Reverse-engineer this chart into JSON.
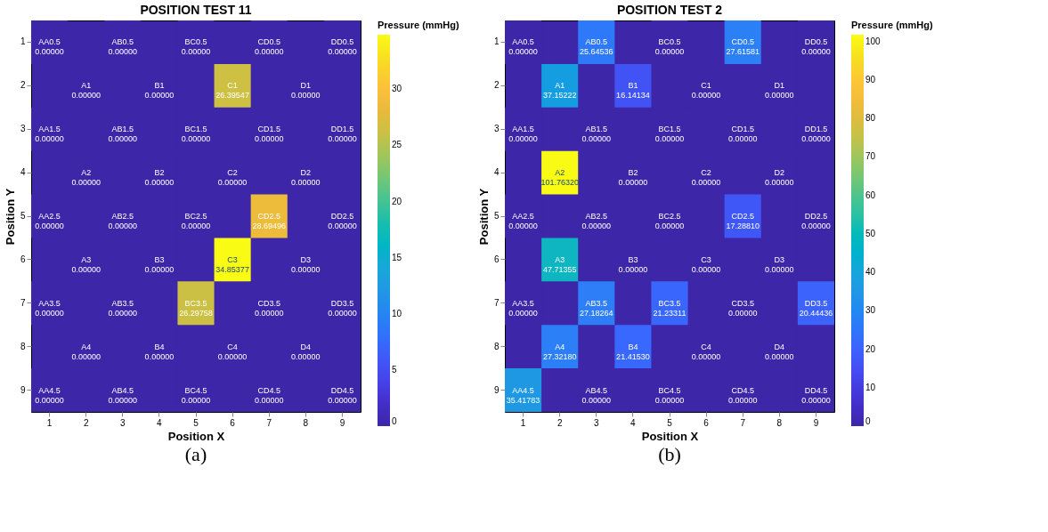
{
  "chart_data": [
    {
      "type": "heatmap",
      "title": "POSITION TEST 11",
      "xlabel": "Position X",
      "ylabel": "Position Y",
      "clabel": "Pressure (mmHg)",
      "annotations": [
        "(a)"
      ],
      "categories": [
        "1",
        "2",
        "3",
        "4",
        "5",
        "6",
        "7",
        "8",
        "9"
      ],
      "y_categories": [
        "1",
        "2",
        "3",
        "4",
        "5",
        "6",
        "7",
        "8",
        "9"
      ],
      "clim": [
        0,
        34.85377
      ],
      "cticks": [
        0,
        5,
        10,
        15,
        20,
        25,
        30
      ],
      "cells": [
        [
          0,
          null,
          0,
          null,
          0,
          null,
          0,
          null,
          0
        ],
        [
          null,
          0,
          null,
          0,
          null,
          26.39547,
          null,
          0,
          null
        ],
        [
          0,
          null,
          0,
          null,
          0,
          null,
          0,
          null,
          0
        ],
        [
          null,
          0,
          null,
          0,
          null,
          0,
          null,
          0,
          null
        ],
        [
          0,
          null,
          0,
          null,
          0,
          null,
          28.69496,
          null,
          0
        ],
        [
          null,
          0,
          null,
          0,
          null,
          34.85377,
          null,
          0,
          null
        ],
        [
          0,
          null,
          0,
          null,
          26.29758,
          null,
          0,
          null,
          0
        ],
        [
          null,
          0,
          null,
          0,
          null,
          0,
          null,
          0,
          null
        ],
        [
          0,
          null,
          0,
          null,
          0,
          null,
          0,
          null,
          0
        ]
      ],
      "cell_labels": [
        [
          "AA0.5\n0.00000",
          null,
          "AB0.5\n0.00000",
          null,
          "BC0.5\n0.00000",
          null,
          "CD0.5\n0.00000",
          null,
          "DD0.5\n0.00000"
        ],
        [
          null,
          "A1\n0.00000",
          null,
          "B1\n0.00000",
          null,
          "C1\n26.39547",
          null,
          "D1\n0.00000",
          null
        ],
        [
          "AA1.5\n0.00000",
          null,
          "AB1.5\n0.00000",
          null,
          "BC1.5\n0.00000",
          null,
          "CD1.5\n0.00000",
          null,
          "DD1.5\n0.00000"
        ],
        [
          null,
          "A2\n0.00000",
          null,
          "B2\n0.00000",
          null,
          "C2\n0.00000",
          null,
          "D2\n0.00000",
          null
        ],
        [
          "AA2.5\n0.00000",
          null,
          "AB2.5\n0.00000",
          null,
          "BC2.5\n0.00000",
          null,
          "CD2.5\n28.69496",
          null,
          "DD2.5\n0.00000"
        ],
        [
          null,
          "A3\n0.00000",
          null,
          "B3\n0.00000",
          null,
          "C3\n34.85377",
          null,
          "D3\n0.00000",
          null
        ],
        [
          "AA3.5\n0.00000",
          null,
          "AB3.5\n0.00000",
          null,
          "BC3.5\n26.29758",
          null,
          "CD3.5\n0.00000",
          null,
          "DD3.5\n0.00000"
        ],
        [
          null,
          "A4\n0.00000",
          null,
          "B4\n0.00000",
          null,
          "C4\n0.00000",
          null,
          "D4\n0.00000",
          null
        ],
        [
          "AA4.5\n0.00000",
          null,
          "AB4.5\n0.00000",
          null,
          "BC4.5\n0.00000",
          null,
          "CD4.5\n0.00000",
          null,
          "DD4.5\n0.00000"
        ]
      ]
    },
    {
      "type": "heatmap",
      "title": "POSITION TEST 2",
      "xlabel": "Position X",
      "ylabel": "Position Y",
      "clabel": "Pressure (mmHg)",
      "annotations": [
        "(b)"
      ],
      "categories": [
        "1",
        "2",
        "3",
        "4",
        "5",
        "6",
        "7",
        "8",
        "9"
      ],
      "y_categories": [
        "1",
        "2",
        "3",
        "4",
        "5",
        "6",
        "7",
        "8",
        "9"
      ],
      "clim": [
        0,
        101.7632
      ],
      "cticks": [
        0,
        10,
        20,
        30,
        40,
        50,
        60,
        70,
        80,
        90,
        100
      ],
      "cells": [
        [
          0,
          null,
          25.64536,
          null,
          0,
          null,
          27.61581,
          null,
          0
        ],
        [
          null,
          37.15222,
          null,
          16.14134,
          null,
          0,
          null,
          0,
          null
        ],
        [
          0,
          null,
          0,
          null,
          0,
          null,
          0,
          null,
          0
        ],
        [
          null,
          101.7632,
          null,
          0,
          null,
          0,
          null,
          0,
          null
        ],
        [
          0,
          null,
          0,
          null,
          0,
          null,
          17.2881,
          null,
          0
        ],
        [
          null,
          47.71355,
          null,
          0,
          null,
          0,
          null,
          0,
          null
        ],
        [
          0,
          null,
          27.18264,
          null,
          21.23311,
          null,
          0,
          null,
          20.44436
        ],
        [
          null,
          27.3218,
          null,
          21.4153,
          null,
          0,
          null,
          0,
          null
        ],
        [
          35.41783,
          null,
          0,
          null,
          0,
          null,
          0,
          null,
          0
        ]
      ],
      "cell_labels": [
        [
          "AA0.5\n0.00000",
          null,
          "AB0.5\n25.64536",
          null,
          "BC0.5\n0.00000",
          null,
          "CD0.5\n27.61581",
          null,
          "DD0.5\n0.00000"
        ],
        [
          null,
          "A1\n37.15222",
          null,
          "B1\n16.14134",
          null,
          "C1\n0.00000",
          null,
          "D1\n0.00000",
          null
        ],
        [
          "AA1.5\n0.00000",
          null,
          "AB1.5\n0.00000",
          null,
          "BC1.5\n0.00000",
          null,
          "CD1.5\n0.00000",
          null,
          "DD1.5\n0.00000"
        ],
        [
          null,
          "A2\n101.76320",
          null,
          "B2\n0.00000",
          null,
          "C2\n0.00000",
          null,
          "D2\n0.00000",
          null
        ],
        [
          "AA2.5\n0.00000",
          null,
          "AB2.5\n0.00000",
          null,
          "BC2.5\n0.00000",
          null,
          "CD2.5\n17.28810",
          null,
          "DD2.5\n0.00000"
        ],
        [
          null,
          "A3\n47.71355",
          null,
          "B3\n0.00000",
          null,
          "C3\n0.00000",
          null,
          "D3\n0.00000",
          null
        ],
        [
          "AA3.5\n0.00000",
          null,
          "AB3.5\n27.18264",
          null,
          "BC3.5\n21.23311",
          null,
          "CD3.5\n0.00000",
          null,
          "DD3.5\n20.44436"
        ],
        [
          null,
          "A4\n27.32180",
          null,
          "B4\n21.41530",
          null,
          "C4\n0.00000",
          null,
          "D4\n0.00000",
          null
        ],
        [
          "AA4.5\n35.41783",
          null,
          "AB4.5\n0.00000",
          null,
          "BC4.5\n0.00000",
          null,
          "CD4.5\n0.00000",
          null,
          "DD4.5\n0.00000"
        ]
      ]
    }
  ]
}
